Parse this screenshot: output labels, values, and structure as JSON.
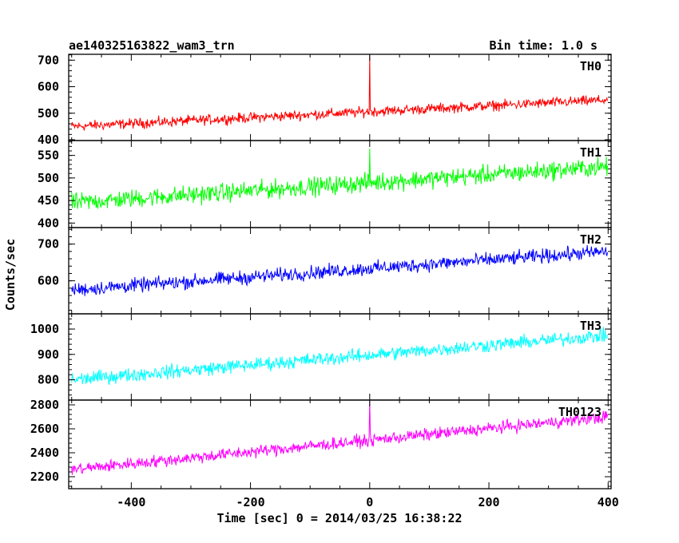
{
  "header": {
    "title": "ae140325163822_wam3_trn",
    "bin_time": "Bin time: 1.0 s"
  },
  "axes": {
    "xlabel": "Time [sec] 0 = 2014/03/25 16:38:22",
    "ylabel": "Counts/sec"
  },
  "chart_data": {
    "type": "line",
    "title": "ae140325163822_wam3_trn",
    "xlabel": "Time [sec] 0 = 2014/03/25 16:38:22",
    "ylabel": "Counts/sec",
    "xlim": [
      -505,
      405
    ],
    "x_ticks": [
      -400,
      -200,
      0,
      200,
      400
    ],
    "x_range": [
      -500,
      399
    ],
    "bin_time_s": 1.0,
    "grid": false,
    "panels": [
      {
        "name": "TH0",
        "color": "#ff0000",
        "ylim": [
          397,
          722
        ],
        "y_ticks": [
          400,
          500,
          600,
          700
        ],
        "trend_start": 450,
        "trend_end": 550,
        "noise_amplitude": 28,
        "spike": {
          "x": 0,
          "value": 720
        }
      },
      {
        "name": "TH1",
        "color": "#00ff00",
        "ylim": [
          390,
          583
        ],
        "y_ticks": [
          400,
          450,
          500,
          550
        ],
        "trend_start": 445,
        "trend_end": 525,
        "noise_amplitude": 30,
        "spike": {
          "x": 0,
          "value": 565
        }
      },
      {
        "name": "TH2",
        "color": "#0000ff",
        "ylim": [
          510,
          745
        ],
        "y_ticks": [
          600,
          700
        ],
        "trend_start": 575,
        "trend_end": 680,
        "noise_amplitude": 28,
        "spike": null
      },
      {
        "name": "TH3",
        "color": "#00ffff",
        "ylim": [
          720,
          1060
        ],
        "y_ticks": [
          800,
          900,
          1000
        ],
        "trend_start": 800,
        "trend_end": 975,
        "noise_amplitude": 40,
        "spike": null
      },
      {
        "name": "TH0123",
        "color": "#ff00ff",
        "ylim": [
          2100,
          2840
        ],
        "y_ticks": [
          2200,
          2400,
          2600,
          2800
        ],
        "trend_start": 2260,
        "trend_end": 2700,
        "noise_amplitude": 75,
        "spike": {
          "x": 0,
          "value": 2835
        }
      }
    ]
  }
}
